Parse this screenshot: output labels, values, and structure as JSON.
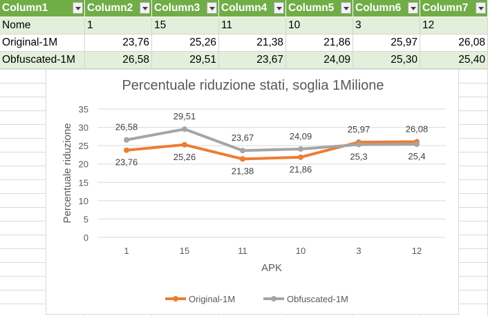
{
  "table": {
    "headers": [
      "Column1",
      "Column2",
      "Column3",
      "Column4",
      "Column5",
      "Column6",
      "Column7"
    ],
    "rows": [
      [
        "Nome",
        "1",
        "15",
        "11",
        "10",
        "3",
        "12"
      ],
      [
        "Original-1M",
        "23,76",
        "25,26",
        "21,38",
        "21,86",
        "25,97",
        "26,08"
      ],
      [
        "Obfuscated-1M",
        "26,58",
        "29,51",
        "23,67",
        "24,09",
        "25,30",
        "25,40"
      ]
    ]
  },
  "chart_data": {
    "type": "line",
    "title": "Percentuale riduzione stati, soglia 1Milione",
    "xlabel": "APK",
    "ylabel": "Percentuale riduzione",
    "categories": [
      "1",
      "15",
      "11",
      "10",
      "3",
      "12"
    ],
    "ylim": [
      0,
      35
    ],
    "yticks": [
      0,
      5,
      10,
      15,
      20,
      25,
      30,
      35
    ],
    "grid": true,
    "legend": "bottom",
    "series": [
      {
        "name": "Original-1M",
        "values": [
          23.76,
          25.26,
          21.38,
          21.86,
          25.97,
          26.08
        ],
        "labels": [
          "23,76",
          "25,26",
          "21,38",
          "21,86",
          "25,97",
          "26,08"
        ],
        "color": "#ed7d31"
      },
      {
        "name": "Obfuscated-1M",
        "values": [
          26.58,
          29.51,
          23.67,
          24.09,
          25.3,
          25.4
        ],
        "labels": [
          "26,58",
          "29,51",
          "23,67",
          "24,09",
          "25,3",
          "25,4"
        ],
        "color": "#a5a5a5"
      }
    ]
  }
}
